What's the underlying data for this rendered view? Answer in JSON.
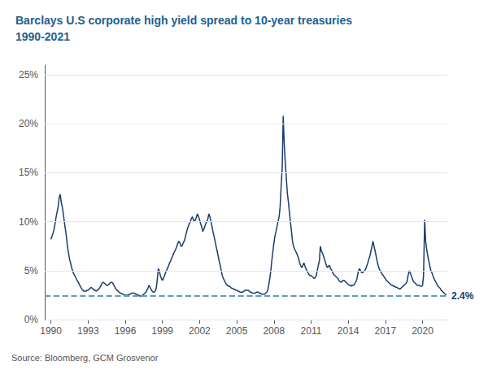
{
  "chart_data": {
    "type": "line",
    "title": "Barclays U.S corporate high yield spread to 10-year treasuries\n1990-2021",
    "title_color": "#1F6090",
    "caption": "Source: Bloomberg, GCM Grosvenor",
    "color": "#1a3d6b",
    "x": [
      1990,
      1990.08,
      1990.17,
      1990.25,
      1990.33,
      1990.42,
      1990.5,
      1990.58,
      1990.67,
      1990.75,
      1990.83,
      1990.92,
      1991,
      1991.08,
      1991.17,
      1991.25,
      1991.33,
      1991.42,
      1991.5,
      1991.58,
      1991.67,
      1991.75,
      1991.83,
      1991.92,
      1992,
      1992.08,
      1992.17,
      1992.25,
      1992.33,
      1992.42,
      1992.5,
      1992.58,
      1992.67,
      1992.75,
      1992.83,
      1992.92,
      1993,
      1993.08,
      1993.17,
      1993.25,
      1993.33,
      1993.42,
      1993.5,
      1993.58,
      1993.67,
      1993.75,
      1993.83,
      1993.92,
      1994,
      1994.08,
      1994.17,
      1994.25,
      1994.33,
      1994.42,
      1994.5,
      1994.58,
      1994.67,
      1994.75,
      1994.83,
      1994.92,
      1995,
      1995.08,
      1995.17,
      1995.25,
      1995.33,
      1995.42,
      1995.5,
      1995.58,
      1995.67,
      1995.75,
      1995.83,
      1995.92,
      1996,
      1996.08,
      1996.17,
      1996.25,
      1996.33,
      1996.42,
      1996.5,
      1996.58,
      1996.67,
      1996.75,
      1996.83,
      1996.92,
      1997,
      1997.08,
      1997.17,
      1997.25,
      1997.33,
      1997.42,
      1997.5,
      1997.58,
      1997.67,
      1997.75,
      1997.83,
      1997.92,
      1998,
      1998.08,
      1998.17,
      1998.25,
      1998.33,
      1998.42,
      1998.5,
      1998.58,
      1998.67,
      1998.75,
      1998.83,
      1998.92,
      1999,
      1999.08,
      1999.17,
      1999.25,
      1999.33,
      1999.42,
      1999.5,
      1999.58,
      1999.67,
      1999.75,
      1999.83,
      1999.92,
      2000,
      2000.08,
      2000.17,
      2000.25,
      2000.33,
      2000.42,
      2000.5,
      2000.58,
      2000.67,
      2000.75,
      2000.83,
      2000.92,
      2001,
      2001.08,
      2001.17,
      2001.25,
      2001.33,
      2001.42,
      2001.5,
      2001.58,
      2001.67,
      2001.75,
      2001.83,
      2001.92,
      2002,
      2002.08,
      2002.17,
      2002.25,
      2002.33,
      2002.42,
      2002.5,
      2002.58,
      2002.67,
      2002.75,
      2002.83,
      2002.92,
      2003,
      2003.08,
      2003.17,
      2003.25,
      2003.33,
      2003.42,
      2003.5,
      2003.58,
      2003.67,
      2003.75,
      2003.83,
      2003.92,
      2004,
      2004.08,
      2004.17,
      2004.25,
      2004.33,
      2004.42,
      2004.5,
      2004.58,
      2004.67,
      2004.75,
      2004.83,
      2004.92,
      2005,
      2005.08,
      2005.17,
      2005.25,
      2005.33,
      2005.42,
      2005.5,
      2005.58,
      2005.67,
      2005.75,
      2005.83,
      2005.92,
      2006,
      2006.08,
      2006.17,
      2006.25,
      2006.33,
      2006.42,
      2006.5,
      2006.58,
      2006.67,
      2006.75,
      2006.83,
      2006.92,
      2007,
      2007.08,
      2007.17,
      2007.25,
      2007.33,
      2007.42,
      2007.5,
      2007.58,
      2007.67,
      2007.75,
      2007.83,
      2007.92,
      2008,
      2008.08,
      2008.17,
      2008.25,
      2008.33,
      2008.42,
      2008.5,
      2008.58,
      2008.67,
      2008.75,
      2008.83,
      2008.92,
      2009,
      2009.08,
      2009.17,
      2009.25,
      2009.33,
      2009.42,
      2009.5,
      2009.58,
      2009.67,
      2009.75,
      2009.83,
      2009.92,
      2010,
      2010.08,
      2010.17,
      2010.25,
      2010.33,
      2010.42,
      2010.5,
      2010.58,
      2010.67,
      2010.75,
      2010.83,
      2010.92,
      2011,
      2011.08,
      2011.17,
      2011.25,
      2011.33,
      2011.42,
      2011.5,
      2011.58,
      2011.67,
      2011.75,
      2011.83,
      2011.92,
      2012,
      2012.08,
      2012.17,
      2012.25,
      2012.33,
      2012.42,
      2012.5,
      2012.58,
      2012.67,
      2012.75,
      2012.83,
      2012.92,
      2013,
      2013.08,
      2013.17,
      2013.25,
      2013.33,
      2013.42,
      2013.5,
      2013.58,
      2013.67,
      2013.75,
      2013.83,
      2013.92,
      2014,
      2014.08,
      2014.17,
      2014.25,
      2014.33,
      2014.42,
      2014.5,
      2014.58,
      2014.67,
      2014.75,
      2014.83,
      2014.92,
      2015,
      2015.08,
      2015.17,
      2015.25,
      2015.33,
      2015.42,
      2015.5,
      2015.58,
      2015.67,
      2015.75,
      2015.83,
      2015.92,
      2016,
      2016.08,
      2016.17,
      2016.25,
      2016.33,
      2016.42,
      2016.5,
      2016.58,
      2016.67,
      2016.75,
      2016.83,
      2016.92,
      2017,
      2017.08,
      2017.17,
      2017.25,
      2017.33,
      2017.42,
      2017.5,
      2017.58,
      2017.67,
      2017.75,
      2017.83,
      2017.92,
      2018,
      2018.08,
      2018.17,
      2018.25,
      2018.33,
      2018.42,
      2018.5,
      2018.58,
      2018.67,
      2018.75,
      2018.83,
      2018.92,
      2019,
      2019.08,
      2019.17,
      2019.25,
      2019.33,
      2019.42,
      2019.5,
      2019.58,
      2019.67,
      2019.75,
      2019.83,
      2019.92,
      2020,
      2020.08,
      2020.17,
      2020.25,
      2020.33,
      2020.42,
      2020.5,
      2020.58,
      2020.67,
      2020.75,
      2020.83,
      2020.92,
      2021,
      2021.08,
      2021.17,
      2021.25,
      2021.33,
      2021.42,
      2021.5,
      2021.58,
      2021.67,
      2021.75,
      2021.83,
      2021.92
    ],
    "values": [
      8.2,
      8.5,
      8.8,
      9.2,
      9.8,
      10.5,
      11.0,
      11.5,
      12.5,
      12.8,
      12.0,
      11.5,
      10.8,
      10.0,
      9.2,
      8.5,
      7.5,
      6.8,
      6.2,
      5.8,
      5.3,
      5.0,
      4.7,
      4.5,
      4.3,
      4.1,
      3.9,
      3.7,
      3.5,
      3.3,
      3.1,
      3.0,
      2.9,
      2.9,
      2.9,
      3.0,
      3.0,
      3.1,
      3.2,
      3.3,
      3.2,
      3.1,
      3.0,
      3.0,
      2.9,
      3.0,
      3.1,
      3.2,
      3.4,
      3.6,
      3.8,
      3.8,
      3.7,
      3.6,
      3.5,
      3.5,
      3.6,
      3.7,
      3.8,
      3.8,
      3.7,
      3.5,
      3.3,
      3.1,
      3.0,
      2.9,
      2.8,
      2.7,
      2.7,
      2.6,
      2.6,
      2.5,
      2.5,
      2.5,
      2.5,
      2.5,
      2.6,
      2.6,
      2.7,
      2.7,
      2.7,
      2.7,
      2.6,
      2.6,
      2.5,
      2.5,
      2.4,
      2.4,
      2.4,
      2.5,
      2.6,
      2.7,
      2.8,
      3.0,
      3.2,
      3.5,
      3.3,
      3.1,
      2.9,
      2.8,
      2.8,
      2.9,
      3.2,
      4.0,
      5.2,
      5.0,
      4.5,
      4.2,
      4.0,
      4.2,
      4.5,
      4.8,
      5.0,
      5.3,
      5.5,
      5.8,
      6.0,
      6.3,
      6.5,
      6.8,
      7.0,
      7.2,
      7.5,
      7.8,
      8.0,
      7.8,
      7.5,
      7.5,
      7.8,
      8.0,
      8.3,
      8.8,
      9.2,
      9.5,
      9.8,
      10.0,
      10.3,
      10.5,
      10.2,
      10.0,
      10.2,
      10.5,
      10.8,
      10.5,
      10.2,
      9.8,
      9.5,
      9.0,
      9.2,
      9.5,
      9.8,
      10.0,
      10.3,
      10.8,
      10.5,
      10.0,
      9.5,
      9.0,
      8.5,
      8.0,
      7.5,
      7.0,
      6.5,
      6.0,
      5.5,
      5.0,
      4.5,
      4.2,
      4.0,
      3.8,
      3.6,
      3.5,
      3.4,
      3.4,
      3.3,
      3.2,
      3.2,
      3.1,
      3.1,
      3.0,
      3.0,
      2.9,
      2.9,
      2.8,
      2.8,
      2.8,
      2.8,
      2.9,
      3.0,
      3.0,
      3.0,
      3.0,
      2.9,
      2.8,
      2.8,
      2.7,
      2.7,
      2.7,
      2.7,
      2.8,
      2.8,
      2.8,
      2.7,
      2.7,
      2.6,
      2.6,
      2.6,
      2.6,
      2.7,
      2.8,
      3.0,
      3.5,
      4.2,
      5.0,
      6.0,
      7.0,
      7.8,
      8.5,
      9.0,
      9.5,
      10.0,
      10.5,
      11.5,
      13.5,
      15.5,
      20.8,
      18.0,
      16.0,
      14.5,
      13.0,
      12.0,
      11.0,
      10.0,
      9.0,
      8.0,
      7.5,
      7.2,
      7.0,
      6.8,
      6.5,
      6.2,
      5.8,
      5.5,
      5.3,
      5.5,
      5.8,
      5.5,
      5.2,
      5.0,
      4.8,
      4.6,
      4.5,
      4.5,
      4.4,
      4.3,
      4.2,
      4.3,
      4.5,
      5.0,
      5.5,
      6.0,
      7.5,
      7.0,
      6.8,
      6.5,
      6.2,
      5.8,
      5.5,
      5.3,
      5.5,
      5.5,
      5.2,
      5.0,
      4.8,
      4.6,
      4.5,
      4.4,
      4.3,
      4.2,
      4.0,
      3.9,
      3.8,
      3.9,
      4.0,
      4.0,
      3.9,
      3.8,
      3.7,
      3.6,
      3.5,
      3.5,
      3.4,
      3.5,
      3.5,
      3.6,
      3.8,
      4.0,
      4.5,
      5.0,
      5.2,
      5.0,
      4.8,
      4.8,
      4.9,
      5.0,
      5.2,
      5.5,
      5.8,
      6.2,
      6.5,
      7.0,
      7.5,
      8.0,
      7.5,
      7.0,
      6.5,
      6.0,
      5.5,
      5.2,
      5.0,
      4.8,
      4.6,
      4.5,
      4.3,
      4.2,
      4.0,
      3.9,
      3.8,
      3.7,
      3.6,
      3.5,
      3.5,
      3.4,
      3.4,
      3.3,
      3.3,
      3.2,
      3.2,
      3.1,
      3.2,
      3.3,
      3.4,
      3.5,
      3.6,
      3.7,
      3.9,
      4.5,
      5.0,
      4.8,
      4.5,
      4.2,
      3.9,
      3.8,
      3.7,
      3.6,
      3.5,
      3.5,
      3.5,
      3.4,
      3.4,
      3.5,
      4.5,
      10.2,
      8.0,
      7.2,
      6.5,
      6.0,
      5.5,
      5.0,
      4.8,
      4.5,
      4.2,
      4.0,
      3.8,
      3.6,
      3.4,
      3.3,
      3.2,
      3.0,
      2.9,
      2.8,
      2.7,
      2.6,
      2.5
    ],
    "xlim": [
      1989.5,
      2022.0
    ],
    "xticks": [
      1990,
      1993,
      1996,
      1999,
      2002,
      2005,
      2008,
      2011,
      2014,
      2017,
      2020
    ],
    "ylim": [
      0,
      26
    ],
    "yticks": [
      {
        "value": 0,
        "label": "0%"
      },
      {
        "value": 5,
        "label": "5%"
      },
      {
        "value": 10,
        "label": "10%"
      },
      {
        "value": 15,
        "label": "15%"
      },
      {
        "value": 20,
        "label": "20%"
      },
      {
        "value": 25,
        "label": "25%"
      }
    ],
    "grid": true,
    "reference_lines": [
      {
        "y": 2.4,
        "label": "2.4%",
        "color": "#5b9bbf",
        "label_color": "#1a3d6b",
        "line_style": "dashed"
      }
    ]
  }
}
